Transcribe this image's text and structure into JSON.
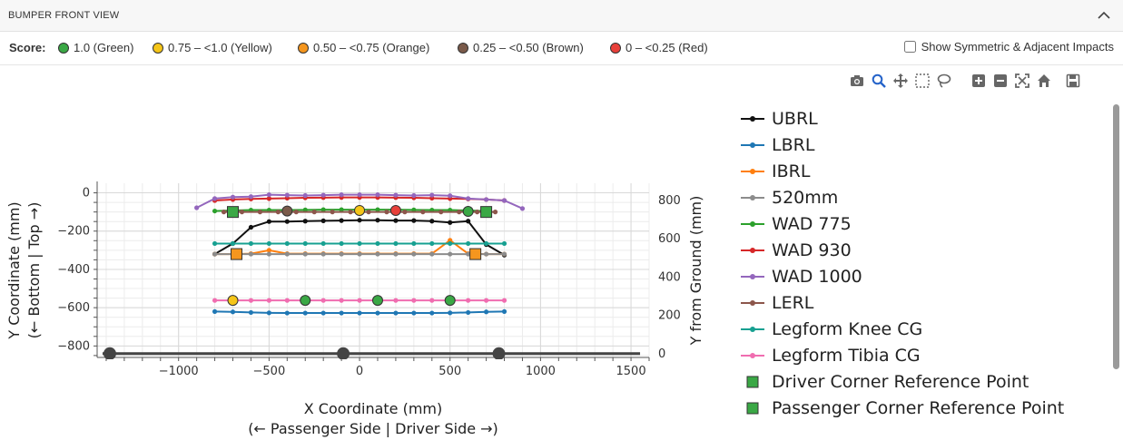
{
  "header": {
    "title": "BUMPER FRONT VIEW"
  },
  "score_legend": {
    "label": "Score:",
    "items": [
      {
        "label": "1.0 (Green)",
        "color": "#3aa845"
      },
      {
        "label": "0.75 – <1.0 (Yellow)",
        "color": "#f5c518"
      },
      {
        "label": "0.50 – <0.75 (Orange)",
        "color": "#f5961e"
      },
      {
        "label": "0.25 – <0.50 (Brown)",
        "color": "#7a5a4a"
      },
      {
        "label": "0 – <0.25 (Red)",
        "color": "#e8403a"
      }
    ]
  },
  "show_symmetric_label": "Show Symmetric & Adjacent Impacts",
  "modebar_icons": [
    "camera-icon",
    "zoom-icon",
    "pan-icon",
    "box-select-icon",
    "lasso-icon",
    "zoom-in-icon",
    "zoom-out-icon",
    "autoscale-icon",
    "home-icon",
    "save-icon"
  ],
  "chart_data": {
    "type": "line",
    "xlabel": "X Coordinate (mm)",
    "xlabel2": "(← Passenger Side | Driver Side →)",
    "ylabel": "Y Coordinate (mm)",
    "ylabel2": "(← Bottom | Top →)",
    "y2label": "Y from Ground (mm)",
    "xlim": [
      -1450,
      1600
    ],
    "ylim": [
      -860,
      50
    ],
    "y2offset": 840,
    "xticks": [
      -1000,
      -500,
      0,
      500,
      1000,
      1500
    ],
    "xtick_labels": [
      "−1000",
      "−500",
      "0",
      "500",
      "1000",
      "1500"
    ],
    "yticks": [
      0,
      -200,
      -400,
      -600,
      -800
    ],
    "ytick_labels": [
      "0",
      "−200",
      "−400",
      "−600",
      "−800"
    ],
    "y2ticks": [
      800,
      600,
      400,
      200,
      0
    ],
    "y2tick_labels": [
      "800",
      "600",
      "400",
      "200",
      "0"
    ],
    "grid": true,
    "legend_position": "right",
    "series": [
      {
        "name": "UBRL",
        "color": "#111111",
        "x": [
          -800,
          -700,
          -600,
          -500,
          -400,
          -300,
          -200,
          -100,
          0,
          100,
          200,
          300,
          400,
          500,
          600,
          700,
          800
        ],
        "y": [
          -320,
          -265,
          -180,
          -150,
          -150,
          -148,
          -146,
          -145,
          -143,
          -143,
          -145,
          -145,
          -148,
          -155,
          -148,
          -270,
          -325
        ]
      },
      {
        "name": "LBRL",
        "color": "#1f77b4",
        "x": [
          -800,
          -700,
          -600,
          -500,
          -400,
          -300,
          -200,
          -100,
          0,
          100,
          200,
          300,
          400,
          500,
          600,
          700,
          800
        ],
        "y": [
          -620,
          -622,
          -625,
          -627,
          -628,
          -628,
          -628,
          -628,
          -628,
          -628,
          -628,
          -628,
          -628,
          -627,
          -625,
          -622,
          -620
        ]
      },
      {
        "name": "IBRL",
        "color": "#ff7f0e",
        "x": [
          -800,
          -700,
          -600,
          -500,
          -400,
          -300,
          -200,
          -100,
          0,
          100,
          200,
          300,
          400,
          500,
          600,
          700,
          800
        ],
        "y": [
          -320,
          -320,
          -318,
          -300,
          -318,
          -318,
          -318,
          -318,
          -318,
          -318,
          -318,
          -318,
          -318,
          -248,
          -318,
          -320,
          -320
        ]
      },
      {
        "name": "520mm",
        "color": "#8c8c8c",
        "x": [
          -800,
          -700,
          -600,
          -500,
          -400,
          -300,
          -200,
          -100,
          0,
          100,
          200,
          300,
          400,
          500,
          600,
          700,
          800
        ],
        "y": [
          -320,
          -320,
          -320,
          -320,
          -320,
          -320,
          -320,
          -320,
          -320,
          -320,
          -320,
          -320,
          -320,
          -320,
          -320,
          -320,
          -320
        ]
      },
      {
        "name": "WAD 775",
        "color": "#2ca02c",
        "x": [
          -800,
          -700,
          -600,
          -500,
          -400,
          -300,
          -200,
          -100,
          0,
          100,
          200,
          300,
          400,
          500,
          600,
          700
        ],
        "y": [
          -95,
          -92,
          -90,
          -90,
          -90,
          -89,
          -88,
          -88,
          -88,
          -88,
          -88,
          -89,
          -90,
          -90,
          -92,
          -95
        ]
      },
      {
        "name": "WAD 930",
        "color": "#d62728",
        "x": [
          -800,
          -700,
          -600,
          -500,
          -400,
          -300,
          -200,
          -100,
          0,
          100,
          200,
          300,
          400,
          500,
          600,
          700,
          800
        ],
        "y": [
          -40,
          -35,
          -32,
          -30,
          -28,
          -26,
          -25,
          -24,
          -24,
          -24,
          -25,
          -26,
          -28,
          -30,
          -32,
          -35,
          -40
        ]
      },
      {
        "name": "WAD 1000",
        "color": "#9467bd",
        "x": [
          -900,
          -800,
          -700,
          -600,
          -500,
          -400,
          -300,
          -200,
          -100,
          0,
          100,
          200,
          300,
          400,
          500,
          600,
          700,
          800,
          900
        ],
        "y": [
          -78,
          -30,
          -22,
          -20,
          -10,
          -12,
          -14,
          -12,
          -10,
          -10,
          -10,
          -12,
          -14,
          -12,
          -15,
          -30,
          -35,
          -40,
          -82
        ]
      },
      {
        "name": "LERL",
        "color": "#8c564b",
        "x": [
          -750,
          -650,
          -550,
          -450,
          -350,
          -250,
          -150,
          -50,
          50,
          150,
          250,
          350,
          450,
          550,
          650,
          750
        ],
        "y": [
          -100,
          -100,
          -100,
          -100,
          -100,
          -100,
          -100,
          -100,
          -100,
          -100,
          -100,
          -100,
          -100,
          -100,
          -100,
          -100
        ]
      },
      {
        "name": "Legform Knee CG",
        "color": "#17a091",
        "x": [
          -800,
          -700,
          -600,
          -500,
          -400,
          -300,
          -200,
          -100,
          0,
          100,
          200,
          300,
          400,
          500,
          600,
          700,
          800
        ],
        "y": [
          -265,
          -265,
          -265,
          -265,
          -265,
          -265,
          -265,
          -265,
          -265,
          -265,
          -265,
          -265,
          -265,
          -265,
          -265,
          -265,
          -265
        ]
      },
      {
        "name": "Legform Tibia CG",
        "color": "#f06db0",
        "x": [
          -800,
          -700,
          -600,
          -500,
          -400,
          -300,
          -200,
          -100,
          0,
          100,
          200,
          300,
          400,
          500,
          600,
          700,
          800
        ],
        "y": [
          -562,
          -562,
          -562,
          -562,
          -562,
          -562,
          -562,
          -562,
          -562,
          -562,
          -562,
          -562,
          -562,
          -562,
          -562,
          -562,
          -562
        ]
      }
    ],
    "ground_line": {
      "y": -840,
      "x": [
        -1420,
        1550
      ],
      "color": "#444444",
      "markers_x": [
        -1380,
        -90,
        770
      ]
    },
    "impact_markers": [
      {
        "x": -700,
        "y": -562,
        "color": "#f5c518"
      },
      {
        "x": -300,
        "y": -562,
        "color": "#3aa845"
      },
      {
        "x": 100,
        "y": -562,
        "color": "#3aa845"
      },
      {
        "x": 500,
        "y": -562,
        "color": "#3aa845"
      },
      {
        "x": -400,
        "y": -95,
        "color": "#7a5a4a"
      },
      {
        "x": 0,
        "y": -92,
        "color": "#f5c518"
      },
      {
        "x": 200,
        "y": -92,
        "color": "#e8403a"
      },
      {
        "x": 600,
        "y": -97,
        "color": "#3aa845"
      }
    ],
    "reference_points": [
      {
        "name": "Driver Corner Reference Point",
        "x": -700,
        "y": -100,
        "color": "#3aa845"
      },
      {
        "name": "Passenger Corner Reference Point",
        "x": 700,
        "y": -100,
        "color": "#3aa845"
      },
      {
        "x": -680,
        "y": -320,
        "color": "#f5961e"
      },
      {
        "x": 640,
        "y": -320,
        "color": "#f5961e"
      }
    ]
  }
}
